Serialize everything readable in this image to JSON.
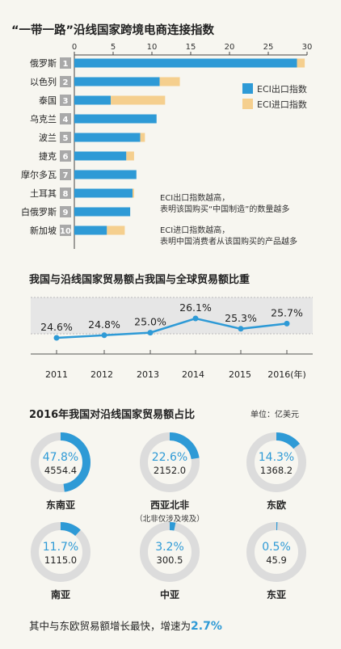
{
  "colors": {
    "export": "#2e9ad6",
    "import": "#f5cf8e",
    "background": "#f7f6f0",
    "accent_text": "#2e9ad6",
    "ring_track": "#dcdcdc",
    "rank_box": "#a9a9a9",
    "band": "#e6e6e6"
  },
  "chart_data": [
    {
      "type": "bar",
      "orientation": "horizontal",
      "stacked": true,
      "title": "“一带一路”沿线国家跨境电商连接指数",
      "x_ticks": [
        "0",
        "5",
        "10",
        "15",
        "20",
        "25",
        "30"
      ],
      "xlim": [
        0,
        30
      ],
      "categories": [
        "俄罗斯",
        "以色列",
        "泰国",
        "乌克兰",
        "波兰",
        "捷克",
        "摩尔多瓦",
        "土耳其",
        "白俄罗斯",
        "新加坡"
      ],
      "ranks": [
        "1",
        "2",
        "3",
        "4",
        "5",
        "6",
        "7",
        "8",
        "9",
        "10"
      ],
      "series": [
        {
          "name": "ECI出口指数",
          "values": [
            28.7,
            11.0,
            4.7,
            10.6,
            8.5,
            6.7,
            8.0,
            7.5,
            7.2,
            4.2
          ]
        },
        {
          "name": "ECI进口指数",
          "values": [
            1.0,
            2.6,
            7.0,
            0,
            0.6,
            1.0,
            0,
            0.2,
            0,
            2.3
          ]
        }
      ],
      "legend_position": "right",
      "notes": [
        [
          "ECI出口指数越高，",
          "表明该国购买“中国制造”的数量越多"
        ],
        [
          "ECI进口指数越高，",
          "表明中国消费者从该国购买的产品越多"
        ]
      ]
    },
    {
      "type": "line",
      "title": "我国与沿线国家贸易额占我国与全球贸易额比重",
      "x": [
        "2011",
        "2012",
        "2013",
        "2014",
        "2015",
        "2016"
      ],
      "x_labels": [
        "2011",
        "2012",
        "2013",
        "2014",
        "2015",
        "2016(年)"
      ],
      "values": [
        24.6,
        24.8,
        25.0,
        26.1,
        25.3,
        25.7
      ],
      "value_labels": [
        "24.6%",
        "24.8%",
        "25.0%",
        "26.1%",
        "25.3%",
        "25.7%"
      ]
    },
    {
      "type": "pie",
      "style": "donut",
      "title": "2016年我国对沿线国家贸易额占比",
      "unit": "单位：亿美元",
      "slices": [
        {
          "label": "东南亚",
          "percent": 47.8,
          "percent_text": "47.8%",
          "value": 4554.4,
          "value_text": "4554.4",
          "sub": ""
        },
        {
          "label": "西亚北非",
          "percent": 22.6,
          "percent_text": "22.6%",
          "value": 2152.0,
          "value_text": "2152.0",
          "sub": "（北非仅涉及埃及）"
        },
        {
          "label": "东欧",
          "percent": 14.3,
          "percent_text": "14.3%",
          "value": 1368.2,
          "value_text": "1368.2",
          "sub": ""
        },
        {
          "label": "南亚",
          "percent": 11.7,
          "percent_text": "11.7%",
          "value": 1115.0,
          "value_text": "1115.0",
          "sub": ""
        },
        {
          "label": "中亚",
          "percent": 3.2,
          "percent_text": "3.2%",
          "value": 300.5,
          "value_text": "300.5",
          "sub": ""
        },
        {
          "label": "东亚",
          "percent": 0.5,
          "percent_text": "0.5%",
          "value": 45.9,
          "value_text": "45.9",
          "sub": ""
        }
      ]
    }
  ],
  "footer": {
    "text": "其中与东欧贸易额增长最快，增速为",
    "highlight": "2.7%"
  }
}
